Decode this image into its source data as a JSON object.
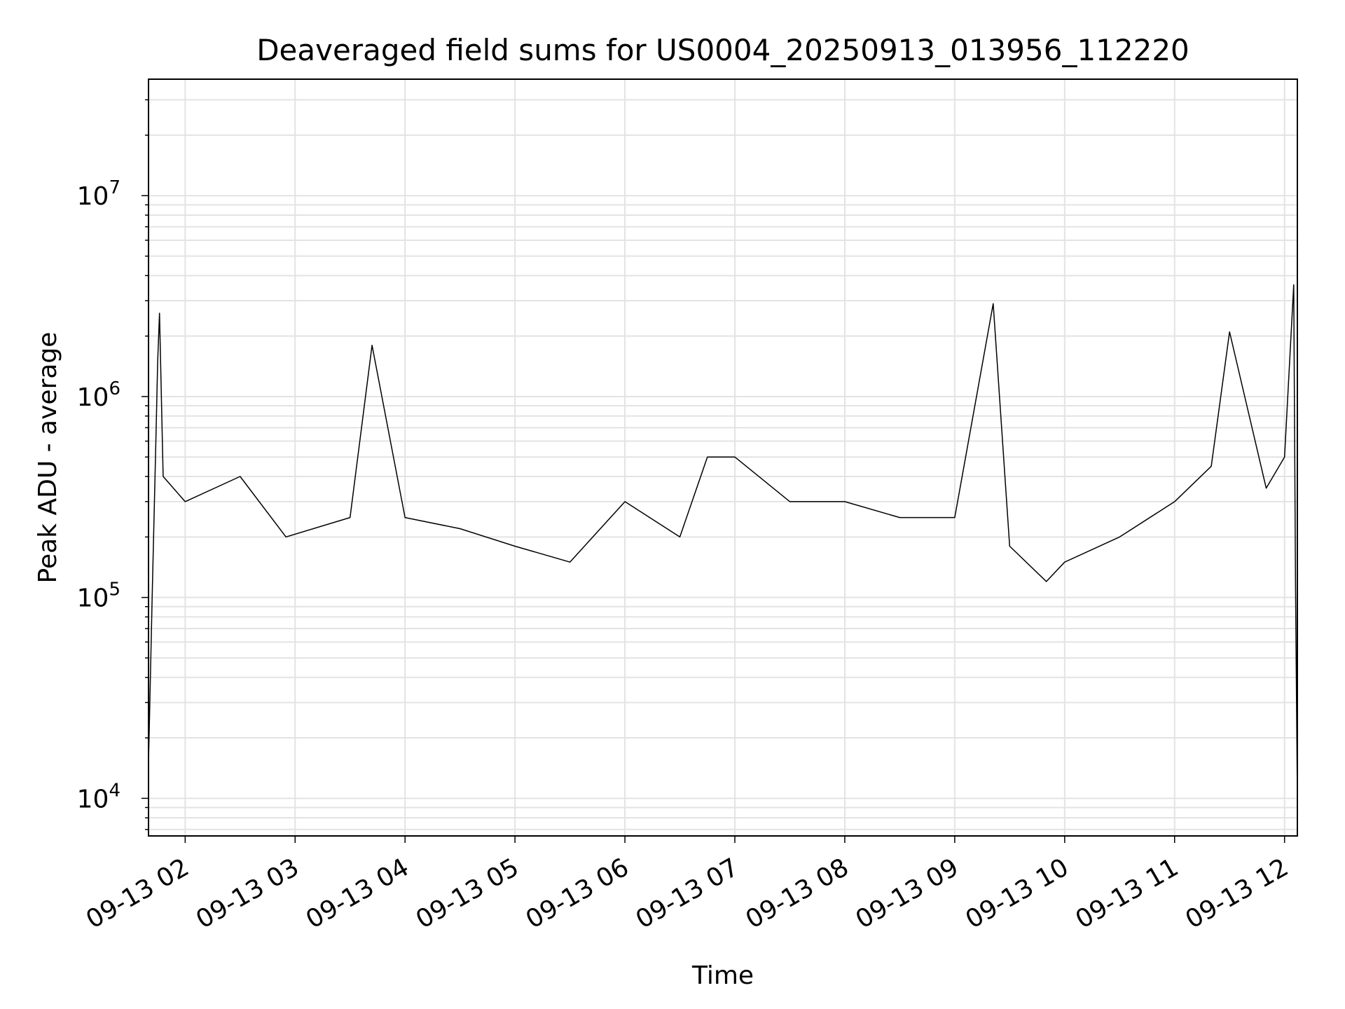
{
  "chart_data": {
    "type": "line",
    "title": "Deaveraged field sums for US0004_20250913_013956_112220",
    "xlabel": "Time",
    "ylabel": "Peak ADU - average",
    "yscale": "log",
    "xlim": [
      "09-13 01:40",
      "09-13 12:07"
    ],
    "ylim": [
      6500,
      38000000
    ],
    "grid": "on (major and minor)",
    "line_color": "#000000",
    "x_ticks": [
      "09-13 02",
      "09-13 03",
      "09-13 04",
      "09-13 05",
      "09-13 06",
      "09-13 07",
      "09-13 08",
      "09-13 09",
      "09-13 10",
      "09-13 11",
      "09-13 12"
    ],
    "y_ticks": [
      {
        "base": "10",
        "exp": "4",
        "value": 10000
      },
      {
        "base": "10",
        "exp": "5",
        "value": 100000
      },
      {
        "base": "10",
        "exp": "6",
        "value": 1000000
      },
      {
        "base": "10",
        "exp": "7",
        "value": 10000000
      }
    ],
    "series": [
      {
        "x": [
          "09-13 01:40",
          "09-13 01:42",
          "09-13 01:44",
          "09-13 01:45",
          "09-13 01:46",
          "09-13 01:48",
          "09-13 02:00",
          "09-13 02:30",
          "09-13 02:55",
          "09-13 03:30",
          "09-13 03:42",
          "09-13 04:00",
          "09-13 04:30",
          "09-13 05:00",
          "09-13 05:30",
          "09-13 06:00",
          "09-13 06:30",
          "09-13 06:45",
          "09-13 07:00",
          "09-13 07:30",
          "09-13 08:00",
          "09-13 08:30",
          "09-13 09:00",
          "09-13 09:21",
          "09-13 09:30",
          "09-13 09:50",
          "09-13 10:00",
          "09-13 10:30",
          "09-13 11:00",
          "09-13 11:20",
          "09-13 11:30",
          "09-13 11:50",
          "09-13 12:00",
          "09-13 12:05",
          "09-13 12:06",
          "09-13 12:07"
        ],
        "y": [
          15000,
          100000,
          600000,
          1500000,
          2600000,
          400000,
          300000,
          400000,
          200000,
          250000,
          1800000,
          250000,
          220000,
          180000,
          150000,
          300000,
          200000,
          500000,
          500000,
          300000,
          300000,
          250000,
          250000,
          2900000,
          180000,
          120000,
          150000,
          200000,
          300000,
          450000,
          2100000,
          350000,
          500000,
          3600000,
          110000,
          10000
        ]
      }
    ]
  }
}
